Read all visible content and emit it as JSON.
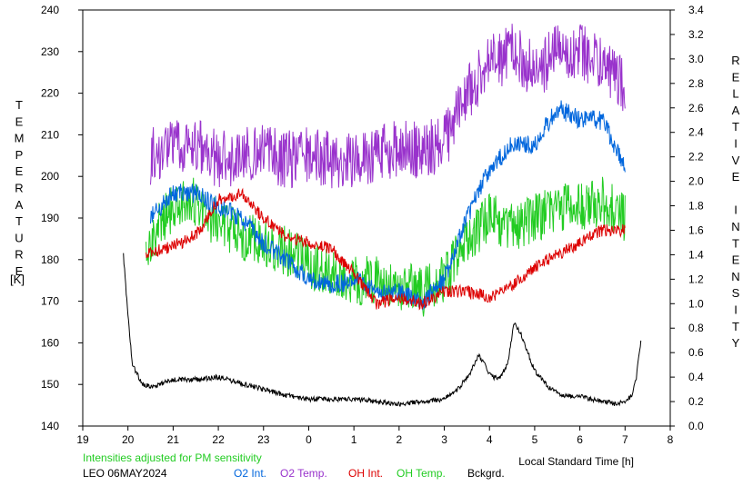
{
  "chart_data": {
    "type": "line",
    "x_axis": {
      "range_hours": [
        19,
        32
      ],
      "tick_labels": [
        "19",
        "20",
        "21",
        "22",
        "23",
        "0",
        "1",
        "2",
        "3",
        "4",
        "5",
        "6",
        "7",
        "8"
      ],
      "label": "Local Standard Time [h]"
    },
    "y_left": {
      "range": [
        140,
        240
      ],
      "tick_labels": [
        "140",
        "150",
        "160",
        "170",
        "180",
        "190",
        "200",
        "210",
        "220",
        "230",
        "240"
      ],
      "label": "TEMPERATURE",
      "unit": "[K]"
    },
    "y_right": {
      "range": [
        0.0,
        3.4
      ],
      "tick_labels": [
        "0.0",
        "0.2",
        "0.4",
        "0.6",
        "0.8",
        "1.0",
        "1.2",
        "1.4",
        "1.6",
        "1.8",
        "2.0",
        "2.2",
        "2.4",
        "2.6",
        "2.8",
        "3.0",
        "3.2",
        "3.4"
      ],
      "label": "RELATIVE INTENSITY"
    },
    "note": "Intensities adjusted for PM sensitivity",
    "station": "LEO 06MAY2024",
    "legend": [
      {
        "label": "O2 Int.",
        "color": "#0066dd"
      },
      {
        "label": "O2 Temp.",
        "color": "#9933cc"
      },
      {
        "label": "OH Int.",
        "color": "#dd0000"
      },
      {
        "label": "OH Temp.",
        "color": "#22cc22"
      },
      {
        "label": "Bckgrd.",
        "color": "#000000"
      }
    ],
    "series": [
      {
        "name": "O2 Temp.",
        "axis": "left",
        "color": "#9933cc",
        "noise": 7,
        "x": [
          20.5,
          21.0,
          21.5,
          22.0,
          22.5,
          23.0,
          23.5,
          24.0,
          24.5,
          25.0,
          25.5,
          26.0,
          26.5,
          27.0,
          27.5,
          28.0,
          28.5,
          29.0,
          29.5,
          30.0,
          30.5,
          31.0
        ],
        "y": [
          205,
          207,
          207,
          204,
          205,
          206,
          204,
          205,
          204,
          204,
          205,
          207,
          206,
          208,
          220,
          227,
          230,
          225,
          230,
          230,
          227,
          222
        ]
      },
      {
        "name": "OH Temp.",
        "axis": "left",
        "color": "#22cc22",
        "noise": 6,
        "x": [
          20.4,
          20.8,
          21.2,
          21.6,
          22.0,
          22.5,
          23.0,
          23.5,
          24.0,
          24.5,
          25.0,
          25.5,
          26.0,
          26.5,
          27.0,
          27.5,
          28.0,
          28.5,
          29.0,
          29.5,
          30.0,
          30.5,
          31.0
        ],
        "y": [
          182,
          190,
          195,
          193,
          188,
          186,
          184,
          182,
          179,
          176,
          175,
          175,
          174,
          172,
          175,
          185,
          190,
          188,
          190,
          192,
          193,
          194,
          190
        ]
      },
      {
        "name": "O2 Int.",
        "axis": "right",
        "color": "#0066dd",
        "noise": 0.08,
        "x": [
          20.5,
          21.0,
          21.5,
          22.0,
          22.5,
          23.0,
          23.5,
          24.0,
          24.5,
          25.0,
          25.5,
          26.0,
          26.5,
          27.0,
          27.5,
          28.0,
          28.5,
          29.0,
          29.5,
          30.0,
          30.5,
          31.0
        ],
        "y": [
          1.7,
          1.9,
          1.9,
          1.8,
          1.7,
          1.5,
          1.35,
          1.2,
          1.15,
          1.2,
          1.1,
          1.1,
          1.0,
          1.2,
          1.7,
          2.1,
          2.3,
          2.3,
          2.6,
          2.5,
          2.5,
          2.1
        ]
      },
      {
        "name": "OH Int.",
        "axis": "right",
        "color": "#dd0000",
        "noise": 0.05,
        "x": [
          20.4,
          20.8,
          21.2,
          21.6,
          22.0,
          22.5,
          23.0,
          23.5,
          24.0,
          24.5,
          25.0,
          25.5,
          26.0,
          26.5,
          27.0,
          27.5,
          28.0,
          28.5,
          29.0,
          29.5,
          30.0,
          30.5,
          31.0
        ],
        "y": [
          1.4,
          1.45,
          1.5,
          1.6,
          1.85,
          1.9,
          1.7,
          1.55,
          1.5,
          1.45,
          1.25,
          1.0,
          1.05,
          1.0,
          1.1,
          1.1,
          1.05,
          1.15,
          1.3,
          1.4,
          1.5,
          1.6,
          1.6
        ]
      },
      {
        "name": "Bckgrd.",
        "axis": "right",
        "color": "#000000",
        "noise": 0.02,
        "x": [
          19.9,
          20.0,
          20.1,
          20.3,
          20.5,
          21.0,
          21.5,
          22.0,
          22.5,
          23.0,
          23.5,
          24.0,
          24.5,
          25.0,
          25.5,
          26.0,
          26.5,
          27.0,
          27.3,
          27.6,
          27.75,
          27.9,
          28.0,
          28.2,
          28.4,
          28.55,
          28.7,
          29.0,
          29.3,
          29.6,
          30.0,
          30.5,
          30.8,
          31.0,
          31.15,
          31.25,
          31.35
        ],
        "y": [
          1.4,
          0.9,
          0.5,
          0.35,
          0.32,
          0.38,
          0.38,
          0.4,
          0.35,
          0.3,
          0.25,
          0.22,
          0.22,
          0.22,
          0.2,
          0.18,
          0.2,
          0.22,
          0.3,
          0.45,
          0.58,
          0.5,
          0.42,
          0.38,
          0.5,
          0.85,
          0.75,
          0.45,
          0.32,
          0.25,
          0.24,
          0.2,
          0.18,
          0.2,
          0.25,
          0.4,
          0.7
        ]
      }
    ]
  }
}
